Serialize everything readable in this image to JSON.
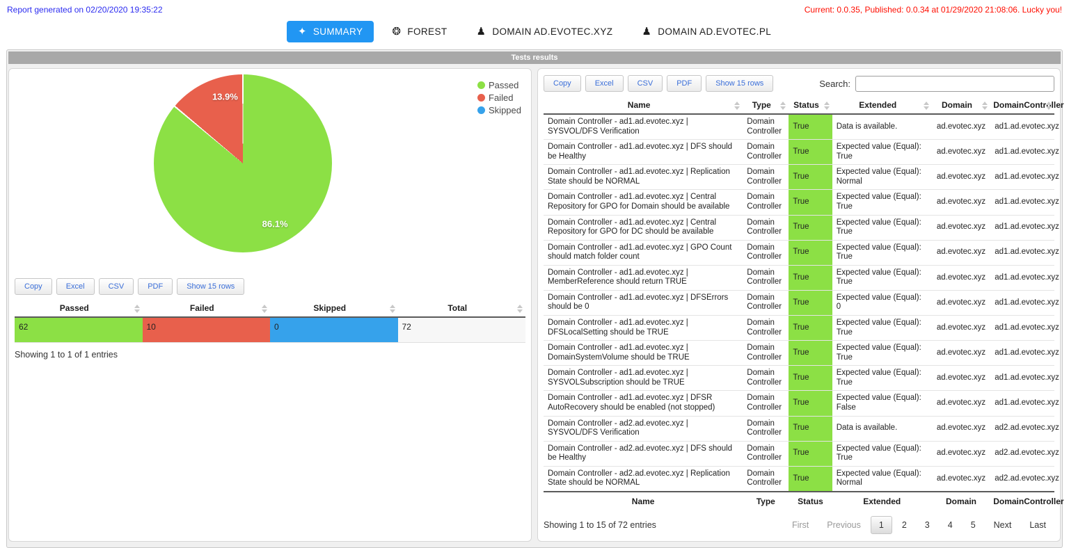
{
  "header": {
    "generated": "Report generated on 02/20/2020 19:35:22",
    "version_info": "Current: 0.0.35, Published: 0.0.34 at 01/29/2020 21:08:06. Lucky you!"
  },
  "nav": {
    "tabs": [
      {
        "label": "SUMMARY",
        "icon": "✦",
        "active": true
      },
      {
        "label": "FOREST",
        "icon": "❂",
        "active": false
      },
      {
        "label": "DOMAIN AD.EVOTEC.XYZ",
        "icon": "♟",
        "active": false
      },
      {
        "label": "DOMAIN AD.EVOTEC.PL",
        "icon": "♟",
        "active": false
      }
    ]
  },
  "section_title": "Tests results",
  "colors": {
    "accent_blue": "#2196f3",
    "link_blue": "#2b2bf0",
    "alert_red": "#ff0d00",
    "passed_green": "#8ce045",
    "failed_red": "#e8604c",
    "skipped_blue": "#36a2eb",
    "total_neutral": "#f7f7f7",
    "section_gray": "#a8a8a8",
    "button_text_blue": "#3a6ed8"
  },
  "chart_data": {
    "type": "pie",
    "title": "",
    "labels": [
      "Passed",
      "Failed",
      "Skipped"
    ],
    "values": [
      62,
      10,
      0
    ],
    "percents": [
      86.1,
      13.9,
      0
    ],
    "slice_labels": [
      "86.1%",
      "13.9%"
    ],
    "colors": [
      "#8ce045",
      "#e8604c",
      "#36a2eb"
    ],
    "legend_position": "right"
  },
  "left_table": {
    "buttons": [
      "Copy",
      "Excel",
      "CSV",
      "PDF",
      "Show 15 rows"
    ],
    "columns": [
      "Passed",
      "Failed",
      "Skipped",
      "Total"
    ],
    "row": {
      "values": [
        "62",
        "10",
        "0",
        "72"
      ],
      "colors": [
        "#8ce045",
        "#e8604c",
        "#36a2eb",
        "#f7f7f7"
      ]
    },
    "info": "Showing 1 to 1 of 1 entries"
  },
  "right_table": {
    "buttons": [
      "Copy",
      "Excel",
      "CSV",
      "PDF",
      "Show 15 rows"
    ],
    "search_label": "Search:",
    "search_value": "",
    "columns": [
      "Name",
      "Type",
      "Status",
      "Extended",
      "Domain",
      "DomainController"
    ],
    "rows": [
      {
        "name": "Domain Controller - ad1.ad.evotec.xyz | SYSVOL/DFS Verification",
        "type": "Domain Controller",
        "status": "True",
        "extended": "Data is available.",
        "domain": "ad.evotec.xyz",
        "dc": "ad1.ad.evotec.xyz"
      },
      {
        "name": "Domain Controller - ad1.ad.evotec.xyz | DFS should be Healthy",
        "type": "Domain Controller",
        "status": "True",
        "extended": "Expected value (Equal): True",
        "domain": "ad.evotec.xyz",
        "dc": "ad1.ad.evotec.xyz"
      },
      {
        "name": "Domain Controller - ad1.ad.evotec.xyz | Replication State should be NORMAL",
        "type": "Domain Controller",
        "status": "True",
        "extended": "Expected value (Equal): Normal",
        "domain": "ad.evotec.xyz",
        "dc": "ad1.ad.evotec.xyz"
      },
      {
        "name": "Domain Controller - ad1.ad.evotec.xyz | Central Repository for GPO for Domain should be available",
        "type": "Domain Controller",
        "status": "True",
        "extended": "Expected value (Equal): True",
        "domain": "ad.evotec.xyz",
        "dc": "ad1.ad.evotec.xyz"
      },
      {
        "name": "Domain Controller - ad1.ad.evotec.xyz | Central Repository for GPO for DC should be available",
        "type": "Domain Controller",
        "status": "True",
        "extended": "Expected value (Equal): True",
        "domain": "ad.evotec.xyz",
        "dc": "ad1.ad.evotec.xyz"
      },
      {
        "name": "Domain Controller - ad1.ad.evotec.xyz | GPO Count should match folder count",
        "type": "Domain Controller",
        "status": "True",
        "extended": "Expected value (Equal): True",
        "domain": "ad.evotec.xyz",
        "dc": "ad1.ad.evotec.xyz"
      },
      {
        "name": "Domain Controller - ad1.ad.evotec.xyz | MemberReference should return TRUE",
        "type": "Domain Controller",
        "status": "True",
        "extended": "Expected value (Equal): True",
        "domain": "ad.evotec.xyz",
        "dc": "ad1.ad.evotec.xyz"
      },
      {
        "name": "Domain Controller - ad1.ad.evotec.xyz | DFSErrors should be 0",
        "type": "Domain Controller",
        "status": "True",
        "extended": "Expected value (Equal): 0",
        "domain": "ad.evotec.xyz",
        "dc": "ad1.ad.evotec.xyz"
      },
      {
        "name": "Domain Controller - ad1.ad.evotec.xyz | DFSLocalSetting should be TRUE",
        "type": "Domain Controller",
        "status": "True",
        "extended": "Expected value (Equal): True",
        "domain": "ad.evotec.xyz",
        "dc": "ad1.ad.evotec.xyz"
      },
      {
        "name": "Domain Controller - ad1.ad.evotec.xyz | DomainSystemVolume should be TRUE",
        "type": "Domain Controller",
        "status": "True",
        "extended": "Expected value (Equal): True",
        "domain": "ad.evotec.xyz",
        "dc": "ad1.ad.evotec.xyz"
      },
      {
        "name": "Domain Controller - ad1.ad.evotec.xyz | SYSVOLSubscription should be TRUE",
        "type": "Domain Controller",
        "status": "True",
        "extended": "Expected value (Equal): True",
        "domain": "ad.evotec.xyz",
        "dc": "ad1.ad.evotec.xyz"
      },
      {
        "name": "Domain Controller - ad1.ad.evotec.xyz | DFSR AutoRecovery should be enabled (not stopped)",
        "type": "Domain Controller",
        "status": "True",
        "extended": "Expected value (Equal): False",
        "domain": "ad.evotec.xyz",
        "dc": "ad1.ad.evotec.xyz"
      },
      {
        "name": "Domain Controller - ad2.ad.evotec.xyz | SYSVOL/DFS Verification",
        "type": "Domain Controller",
        "status": "True",
        "extended": "Data is available.",
        "domain": "ad.evotec.xyz",
        "dc": "ad2.ad.evotec.xyz"
      },
      {
        "name": "Domain Controller - ad2.ad.evotec.xyz | DFS should be Healthy",
        "type": "Domain Controller",
        "status": "True",
        "extended": "Expected value (Equal): True",
        "domain": "ad.evotec.xyz",
        "dc": "ad2.ad.evotec.xyz"
      },
      {
        "name": "Domain Controller - ad2.ad.evotec.xyz | Replication State should be NORMAL",
        "type": "Domain Controller",
        "status": "True",
        "extended": "Expected value (Equal): Normal",
        "domain": "ad.evotec.xyz",
        "dc": "ad2.ad.evotec.xyz"
      }
    ],
    "info": "Showing 1 to 15 of 72 entries",
    "pagination": {
      "first": "First",
      "previous": "Previous",
      "pages": [
        "1",
        "2",
        "3",
        "4",
        "5"
      ],
      "active_page": "1",
      "next": "Next",
      "last": "Last"
    }
  }
}
